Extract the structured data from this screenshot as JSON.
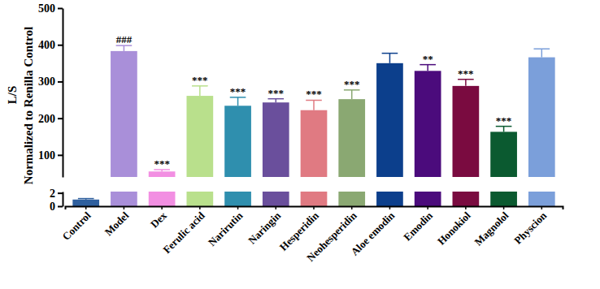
{
  "chart_data": {
    "type": "bar",
    "y_label": [
      "L/S",
      "Normalized to Renilla Control"
    ],
    "categories": [
      "Control",
      "Model",
      "Dex",
      "Ferulic acid",
      "Narirutin",
      "Naringin",
      "Hesperidin",
      "Neohesperidin",
      "Aloe emodin",
      "Emodin",
      "Honokiol",
      "Magnolol",
      "Physcion"
    ],
    "values": [
      1,
      383,
      55,
      261,
      234,
      243,
      222,
      252,
      350,
      329,
      288,
      163,
      366
    ],
    "errors": [
      0.15,
      15,
      5,
      27,
      23,
      10,
      27,
      25,
      27,
      17,
      18,
      15,
      23
    ],
    "significance": [
      null,
      "###",
      "***",
      "***",
      "***",
      "***",
      "***",
      "***",
      null,
      "**",
      "***",
      "***",
      null
    ],
    "colors": [
      "#2e5f9e",
      "#a98fd9",
      "#f28fe2",
      "#b9e08c",
      "#2f8fae",
      "#6a4f9c",
      "#e07a82",
      "#8aa872",
      "#0c3f8c",
      "#4b0b7c",
      "#7a0b40",
      "#0b5a30",
      "#7b9fda"
    ],
    "ylim": [
      0,
      500
    ],
    "y_break": [
      2.2,
      40
    ],
    "yticks": [
      0,
      2,
      100,
      200,
      300,
      400,
      500
    ]
  }
}
